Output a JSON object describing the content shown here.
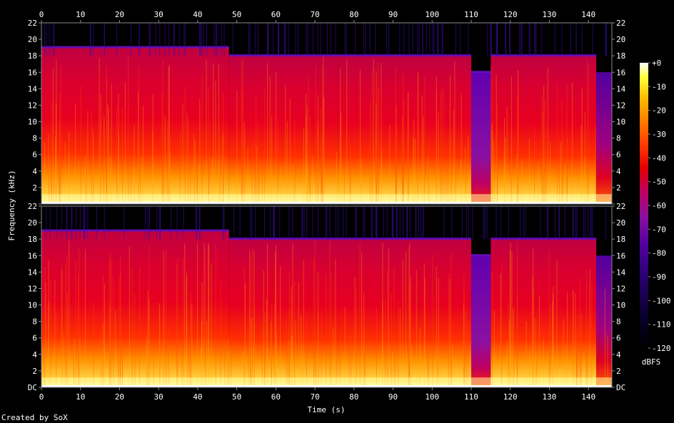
{
  "chart_data": {
    "type": "heatmap",
    "title": "",
    "xlabel": "Time (s)",
    "ylabel": "Frequency (kHz)",
    "colorbar_label": "dBFS",
    "credit": "Created by SoX",
    "xlim": [
      0,
      146
    ],
    "ylim": [
      0,
      22
    ],
    "x_ticks": [
      "0",
      "10",
      "20",
      "30",
      "40",
      "50",
      "60",
      "70",
      "80",
      "90",
      "100",
      "110",
      "120",
      "130",
      "140"
    ],
    "y_ticks": [
      "DC",
      "2",
      "4",
      "6",
      "8",
      "10",
      "12",
      "14",
      "16",
      "18",
      "20",
      "22"
    ],
    "colorbar_ticks": [
      "+0",
      "-10",
      "-20",
      "-30",
      "-40",
      "-50",
      "-60",
      "-70",
      "-80",
      "-90",
      "-100",
      "-110",
      "-120"
    ],
    "channels": [
      {
        "name": "",
        "segments": [
          {
            "t_start": 0,
            "t_end": 48,
            "cutoff_khz": 19.0,
            "level": "loud"
          },
          {
            "t_start": 48,
            "t_end": 76,
            "cutoff_khz": 18.0,
            "level": "loud"
          },
          {
            "t_start": 76,
            "t_end": 110,
            "cutoff_khz": 18.0,
            "level": "loud"
          },
          {
            "t_start": 110,
            "t_end": 115,
            "cutoff_khz": 16.0,
            "level": "quiet"
          },
          {
            "t_start": 115,
            "t_end": 142,
            "cutoff_khz": 18.0,
            "level": "loud"
          },
          {
            "t_start": 142,
            "t_end": 146,
            "cutoff_khz": 16.0,
            "level": "fade"
          }
        ]
      },
      {
        "name": "",
        "segments": [
          {
            "t_start": 0,
            "t_end": 48,
            "cutoff_khz": 19.0,
            "level": "loud"
          },
          {
            "t_start": 48,
            "t_end": 76,
            "cutoff_khz": 18.0,
            "level": "loud"
          },
          {
            "t_start": 76,
            "t_end": 110,
            "cutoff_khz": 18.0,
            "level": "loud"
          },
          {
            "t_start": 110,
            "t_end": 115,
            "cutoff_khz": 16.0,
            "level": "quiet"
          },
          {
            "t_start": 115,
            "t_end": 142,
            "cutoff_khz": 18.0,
            "level": "loud"
          },
          {
            "t_start": 142,
            "t_end": 146,
            "cutoff_khz": 16.0,
            "level": "fade"
          }
        ]
      }
    ],
    "colormap": [
      "#000000",
      "#0a0030",
      "#2a0070",
      "#5000a0",
      "#8a10a0",
      "#c00060",
      "#e00000",
      "#ff4000",
      "#ff8000",
      "#ffc000",
      "#ffff40",
      "#ffffff"
    ]
  }
}
